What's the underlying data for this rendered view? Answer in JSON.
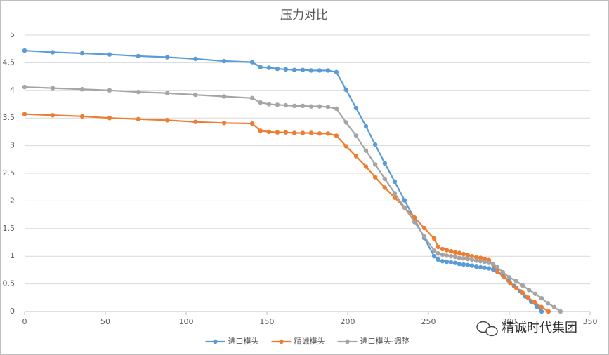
{
  "chart_data": {
    "type": "line",
    "title": "压力对比",
    "xlim": [
      0,
      350
    ],
    "xticks": [
      0,
      50,
      100,
      150,
      200,
      250,
      300,
      350
    ],
    "ylim": [
      0,
      5
    ],
    "yticks": [
      0,
      0.5,
      1,
      1.5,
      2,
      2.5,
      3,
      3.5,
      4,
      4.5,
      5
    ],
    "grid": true,
    "legend": "bottom",
    "watermark": "精诚时代集团",
    "series": [
      {
        "name": "进口模头",
        "color": "#5b9bd5",
        "x": [
          0,
          17.4,
          35.7,
          52.6,
          70.4,
          88.3,
          105.7,
          123.5,
          140.9,
          146,
          151.3,
          156.5,
          161.7,
          167,
          172.2,
          177.4,
          182.6,
          187.8,
          193,
          199,
          205.2,
          211.3,
          217,
          223,
          229.1,
          235.2,
          241.3,
          247.4,
          253.5,
          256,
          258.7,
          261.3,
          263.9,
          266.5,
          269.1,
          271.7,
          274.3,
          276.9,
          279.6,
          282.2,
          284.8,
          287.4,
          290,
          292.6,
          296,
          299.6,
          303,
          306.5,
          310,
          313.5,
          317,
          320
        ],
        "values": [
          4.72,
          4.69,
          4.67,
          4.65,
          4.62,
          4.6,
          4.57,
          4.53,
          4.51,
          4.42,
          4.41,
          4.39,
          4.38,
          4.37,
          4.37,
          4.36,
          4.36,
          4.36,
          4.33,
          4.01,
          3.68,
          3.35,
          3.02,
          2.68,
          2.35,
          2.01,
          1.68,
          1.33,
          1.0,
          0.94,
          0.91,
          0.9,
          0.89,
          0.88,
          0.86,
          0.85,
          0.84,
          0.83,
          0.81,
          0.8,
          0.79,
          0.78,
          0.76,
          0.74,
          0.65,
          0.56,
          0.46,
          0.37,
          0.27,
          0.18,
          0.09,
          0
        ]
      },
      {
        "name": "精诚模头",
        "color": "#ed7d31",
        "x": [
          0,
          17.4,
          35.7,
          52.6,
          70.4,
          88.3,
          105.7,
          123.5,
          140.9,
          146,
          151.3,
          156.5,
          161.7,
          167,
          172.2,
          177.4,
          182.6,
          187.8,
          193,
          199,
          205.2,
          211.3,
          217,
          223,
          229.1,
          235.2,
          241.3,
          247.4,
          253.5,
          256,
          258.7,
          261.3,
          263.9,
          266.5,
          269.1,
          271.7,
          274.3,
          276.9,
          279.6,
          282.2,
          284.8,
          287.4,
          290,
          292.6,
          297,
          300.4,
          304.3,
          308.2,
          311.7,
          315.6,
          319.9,
          324.3
        ],
        "values": [
          3.57,
          3.55,
          3.53,
          3.5,
          3.48,
          3.46,
          3.43,
          3.41,
          3.4,
          3.27,
          3.25,
          3.24,
          3.24,
          3.23,
          3.23,
          3.23,
          3.22,
          3.22,
          3.18,
          2.99,
          2.81,
          2.62,
          2.43,
          2.24,
          2.06,
          1.88,
          1.7,
          1.51,
          1.32,
          1.17,
          1.13,
          1.11,
          1.09,
          1.07,
          1.06,
          1.04,
          1.02,
          1.0,
          0.98,
          0.97,
          0.95,
          0.93,
          0.85,
          0.72,
          0.62,
          0.52,
          0.43,
          0.34,
          0.25,
          0.17,
          0.08,
          0
        ]
      },
      {
        "name": "进口模头-调整",
        "color": "#a5a5a5",
        "x": [
          0,
          17.4,
          35.7,
          52.6,
          70.4,
          88.3,
          105.7,
          123.5,
          140.9,
          146,
          151.3,
          156.5,
          161.7,
          167,
          172.2,
          177.4,
          182.6,
          187.8,
          193,
          199,
          205.2,
          211.3,
          217,
          223,
          229.1,
          235.2,
          241.3,
          247.4,
          253.5,
          256,
          258.7,
          261.3,
          263.9,
          266.5,
          269.1,
          271.7,
          274.3,
          276.9,
          279.6,
          282.2,
          284.8,
          287.4,
          290,
          292.6,
          296.1,
          300,
          304.3,
          308.3,
          312.2,
          316.1,
          320,
          323.9,
          327.8,
          331.7
        ],
        "values": [
          4.06,
          4.04,
          4.02,
          4.0,
          3.97,
          3.95,
          3.92,
          3.89,
          3.86,
          3.78,
          3.75,
          3.74,
          3.73,
          3.72,
          3.72,
          3.71,
          3.71,
          3.7,
          3.67,
          3.42,
          3.18,
          2.91,
          2.66,
          2.4,
          2.14,
          1.88,
          1.62,
          1.36,
          1.1,
          1.05,
          1.03,
          1.01,
          1.0,
          0.99,
          0.97,
          0.96,
          0.95,
          0.94,
          0.92,
          0.91,
          0.9,
          0.88,
          0.86,
          0.8,
          0.71,
          0.62,
          0.55,
          0.47,
          0.39,
          0.32,
          0.24,
          0.15,
          0.08,
          0
        ]
      }
    ]
  }
}
